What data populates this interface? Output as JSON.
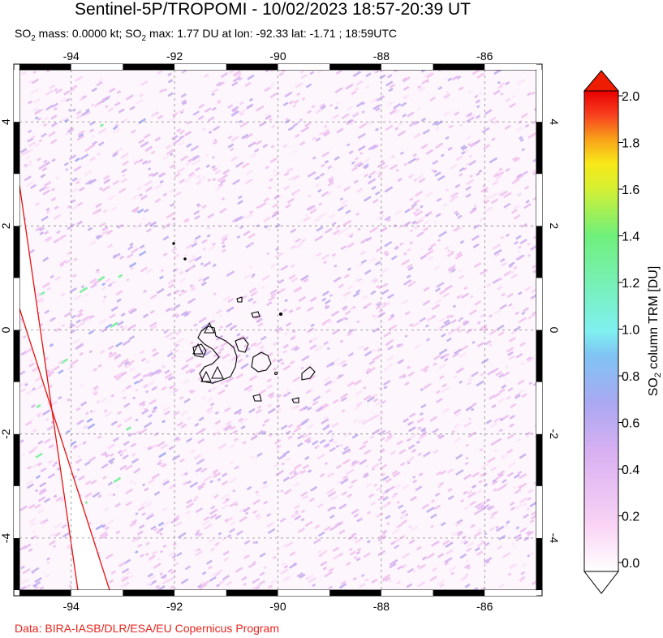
{
  "title": "Sentinel-5P/TROPOMI - 10/02/2023 18:57-20:39 UT",
  "subtitle": {
    "mass_prefix": "SO",
    "mass_sub": "2",
    "mass_text": " mass: 0.0000 kt; SO",
    "max_sub": "2",
    "max_text": " max: 1.77 DU at lon: -92.33 lat: -1.71 ; 18:59UTC"
  },
  "credit": "Data: BIRA-IASB/DLR/ESA/EU Copernicus Program",
  "map": {
    "lon_range": [
      -95,
      -85
    ],
    "lat_range": [
      -5,
      5
    ],
    "lon_ticks": [
      "-94",
      "-92",
      "-90",
      "-88",
      "-86"
    ],
    "lat_ticks": [
      "4",
      "2",
      "0",
      "-2",
      "-4"
    ],
    "grid": "dashed",
    "features": [
      "galapagos-islands",
      "volcano-markers",
      "swath-edge-lines"
    ]
  },
  "colorbar": {
    "label": "SO2 column TRM [DU]",
    "label_main": "SO",
    "label_sub": "2",
    "label_rest": " column TRM [DU]",
    "ticks": [
      "2.0",
      "1.8",
      "1.6",
      "1.4",
      "1.2",
      "1.0",
      "0.8",
      "0.6",
      "0.4",
      "0.2",
      "0.0"
    ],
    "min": 0.0,
    "max": 2.0,
    "colors": [
      "#ffffff",
      "#f9d2f5",
      "#d8b0f2",
      "#aaa8f2",
      "#7fc4f3",
      "#7ff0f0",
      "#6ff07a",
      "#d8f030",
      "#f8e818",
      "#f8a018",
      "#f84020",
      "#e80000"
    ]
  }
}
